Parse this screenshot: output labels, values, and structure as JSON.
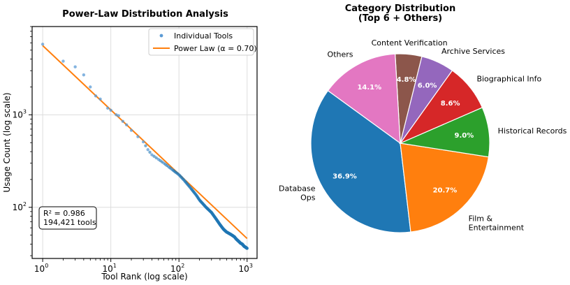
{
  "colors": {
    "blue": "#1f77b4",
    "orange": "#ff7f0e",
    "green": "#2ca02c",
    "red": "#d62728",
    "purple": "#9467bd",
    "brown": "#8c564b",
    "pink": "#e377c2",
    "grid": "#dddddd",
    "scatter": "#5b9bd5"
  },
  "chart_data": [
    {
      "type": "scatter",
      "title": "Power-Law Distribution Analysis",
      "xlabel": "Tool Rank (log scale)",
      "ylabel": "Usage Count (log scale)",
      "xscale": "log",
      "yscale": "log",
      "xlim": [
        0.7,
        1400
      ],
      "ylim": [
        28,
        9000
      ],
      "x_ticks": [
        {
          "value": 1,
          "base": "10",
          "exp": "0"
        },
        {
          "value": 10,
          "base": "10",
          "exp": "1"
        },
        {
          "value": 100,
          "base": "10",
          "exp": "2"
        },
        {
          "value": 1000,
          "base": "10",
          "exp": "3"
        }
      ],
      "y_ticks": [
        {
          "value": 100,
          "base": "10",
          "exp": "2"
        },
        {
          "value": 1000,
          "base": "10",
          "exp": "3"
        }
      ],
      "grid": true,
      "legend_position": "top-right",
      "series": [
        {
          "name": "Individual Tools",
          "style": "scatter",
          "points": [
            [
              1,
              5800
            ],
            [
              2,
              3800
            ],
            [
              3,
              3300
            ],
            [
              4,
              2700
            ],
            [
              5,
              2000
            ],
            [
              6,
              1600
            ],
            [
              7,
              1480
            ],
            [
              9,
              1180
            ],
            [
              10,
              1120
            ],
            [
              12,
              1000
            ],
            [
              13,
              980
            ],
            [
              15,
              850
            ],
            [
              17,
              780
            ],
            [
              20,
              680
            ],
            [
              25,
              580
            ],
            [
              30,
              510
            ],
            [
              35,
              420
            ],
            [
              40,
              370
            ],
            [
              50,
              330
            ],
            [
              60,
              300
            ],
            [
              70,
              275
            ],
            [
              80,
              255
            ],
            [
              100,
              225
            ],
            [
              120,
              195
            ],
            [
              150,
              160
            ],
            [
              180,
              135
            ],
            [
              200,
              120
            ],
            [
              250,
              100
            ],
            [
              300,
              88
            ],
            [
              350,
              75
            ],
            [
              400,
              65
            ],
            [
              450,
              58
            ],
            [
              500,
              54
            ],
            [
              550,
              52
            ],
            [
              600,
              50
            ],
            [
              650,
              48
            ],
            [
              700,
              45
            ],
            [
              750,
              43
            ],
            [
              800,
              41
            ],
            [
              850,
              40
            ],
            [
              900,
              38
            ],
            [
              950,
              37
            ],
            [
              1000,
              36
            ]
          ]
        },
        {
          "name": "Power Law (α = 0.70)",
          "style": "line",
          "points": [
            [
              1,
              5600
            ],
            [
              1000,
              46
            ]
          ]
        }
      ],
      "annotation": {
        "r_squared": "R² = 0.986",
        "tools": "194,421 tools"
      }
    },
    {
      "type": "pie",
      "title_line1": "Category Distribution",
      "title_line2": "(Top 6 + Others)",
      "slices": [
        {
          "label": [
            "Database",
            "Ops"
          ],
          "value": 36.9,
          "pct": "36.9%",
          "color": "#1f77b4"
        },
        {
          "label": [
            "Film &",
            "Entertainment"
          ],
          "value": 20.7,
          "pct": "20.7%",
          "color": "#ff7f0e"
        },
        {
          "label": [
            "Historical Records"
          ],
          "value": 9.0,
          "pct": "9.0%",
          "color": "#2ca02c"
        },
        {
          "label": [
            "Biographical Info"
          ],
          "value": 8.6,
          "pct": "8.6%",
          "color": "#d62728"
        },
        {
          "label": [
            "Archive Services"
          ],
          "value": 6.0,
          "pct": "6.0%",
          "color": "#9467bd"
        },
        {
          "label": [
            "Content Verification"
          ],
          "value": 4.8,
          "pct": "4.8%",
          "color": "#8c564b"
        },
        {
          "label": [
            "Others"
          ],
          "value": 14.1,
          "pct": "14.1%",
          "color": "#e377c2"
        }
      ]
    }
  ]
}
